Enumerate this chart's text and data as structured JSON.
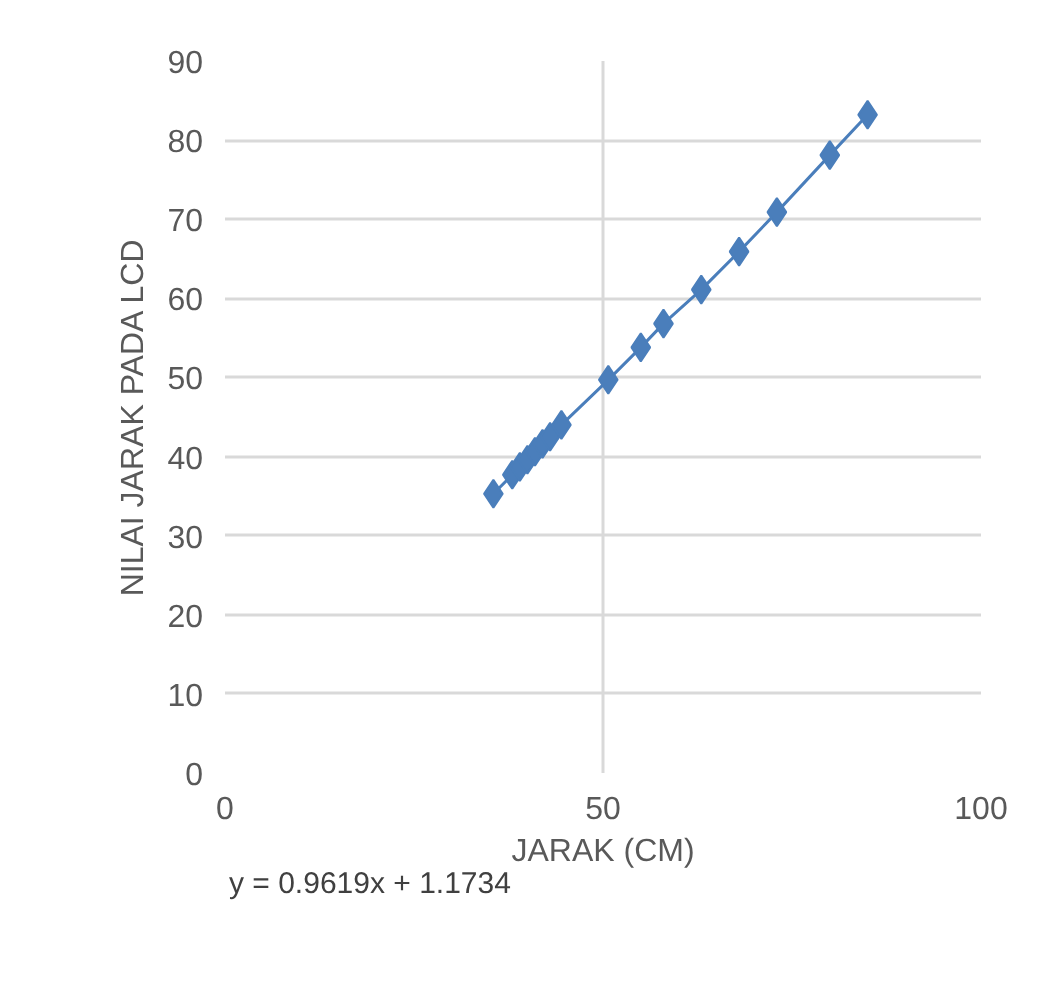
{
  "chart_data": {
    "type": "line",
    "xlabel": "JARAK (CM)",
    "ylabel": "NILAI JARAK PADA LCD",
    "x": [
      35.5,
      38,
      39,
      40,
      41,
      42,
      43,
      44.5,
      50.7,
      55,
      58,
      63,
      68,
      73,
      80,
      85
    ],
    "series": [
      {
        "color": "#4a7ebb",
        "values": [
          35.3,
          37.7,
          38.7,
          39.6,
          40.6,
          41.6,
          42.5,
          44.0,
          49.7,
          53.8,
          56.8,
          61.1,
          65.9,
          70.9,
          78.1,
          83.2
        ]
      }
    ],
    "xlim": [
      0,
      100
    ],
    "xticks": [
      0,
      50,
      100
    ],
    "ylim": [
      0,
      90
    ],
    "yticks": [
      0,
      10,
      20,
      30,
      40,
      50,
      60,
      70,
      80,
      90
    ],
    "grid": true,
    "marker": "diamond",
    "line_style": "solid",
    "annotations": [
      "y = 0.9619x + 1.1734"
    ]
  }
}
